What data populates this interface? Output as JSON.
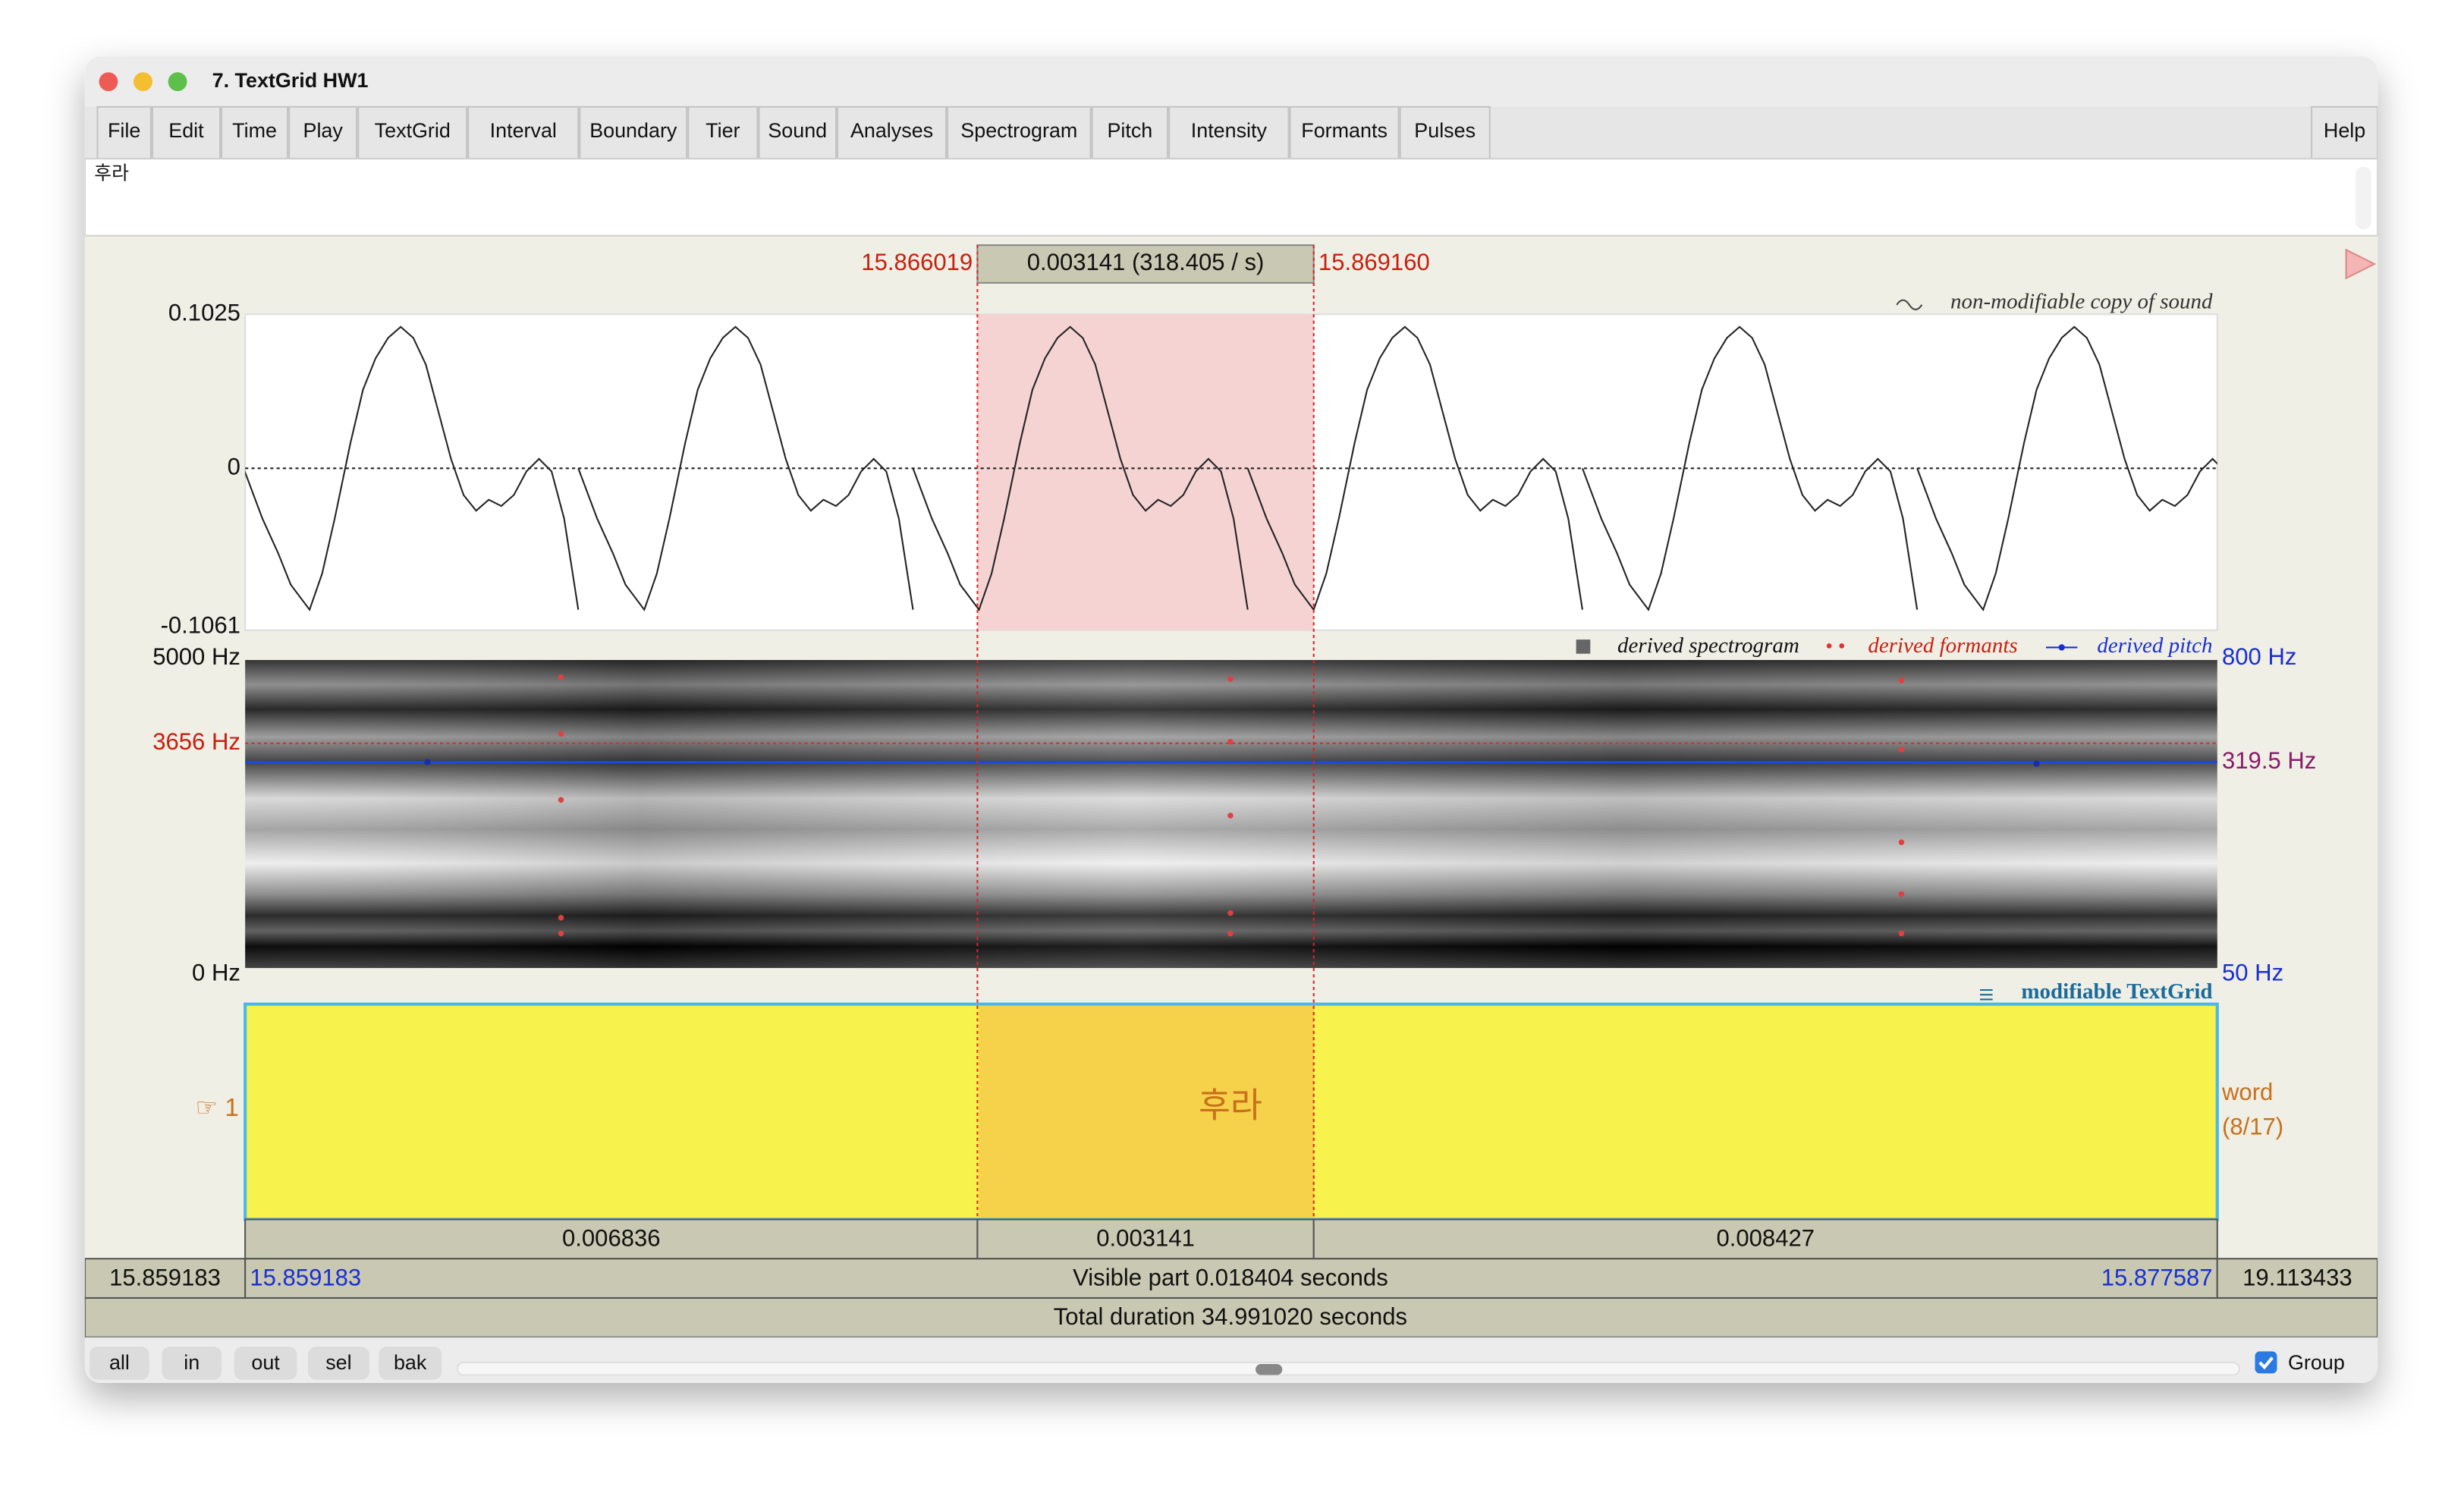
{
  "window": {
    "title": "7. TextGrid HW1"
  },
  "menu": [
    "File",
    "Edit",
    "Time",
    "Play",
    "TextGrid",
    "Interval",
    "Boundary",
    "Tier",
    "Sound",
    "Analyses",
    "Spectrogram",
    "Pitch",
    "Intensity",
    "Formants",
    "Pulses"
  ],
  "help": "Help",
  "text_field": "후라",
  "selection": {
    "start": "15.866019",
    "duration": "0.003141 (318.405 / s)",
    "end": "15.869160"
  },
  "sound": {
    "caption": "non-modifiable copy of sound",
    "ymax": "0.1025",
    "zero": "0",
    "ymin": "-0.1061"
  },
  "spectrogram": {
    "legend": [
      "derived spectrogram",
      "derived formants",
      "derived pitch"
    ],
    "freq_max": "5000 Hz",
    "cursor_freq": "3656 Hz",
    "freq_min": "0 Hz",
    "pitch_max": "800 Hz",
    "pitch_cursor": "319.5 Hz",
    "pitch_min": "50 Hz"
  },
  "textgrid": {
    "caption": "modifiable TextGrid",
    "tier_label": "☞ 1",
    "tier_name": "word",
    "tier_count": "(8/17)",
    "interval_text": "후라"
  },
  "durations": [
    "0.006836",
    "0.003141",
    "0.008427"
  ],
  "time_bar": {
    "left": "15.859183",
    "visible_start": "15.859183",
    "visible": "Visible part 0.018404 seconds",
    "visible_end": "15.877587",
    "right": "19.113433",
    "total": "Total duration 34.991020 seconds"
  },
  "buttons": [
    "all",
    "in",
    "out",
    "sel",
    "bak"
  ],
  "group": "Group"
}
